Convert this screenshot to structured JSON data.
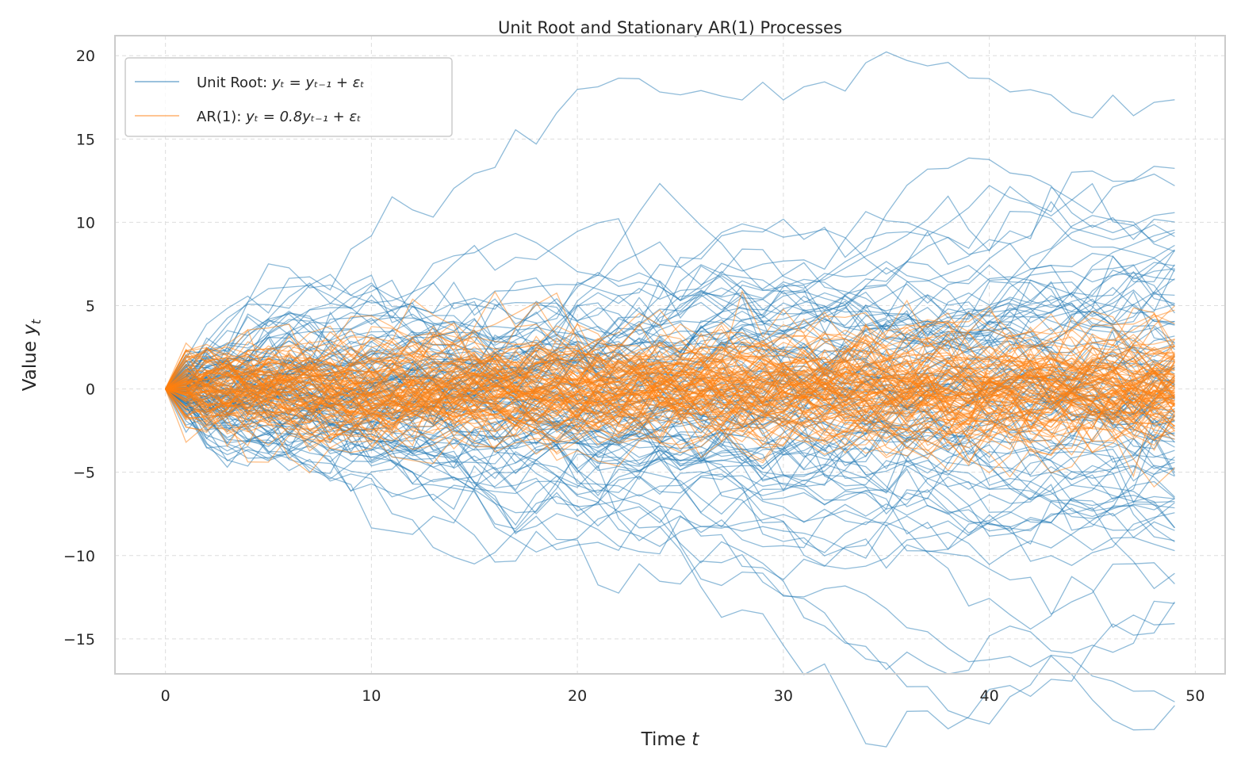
{
  "chart_data": {
    "type": "line",
    "title": "Unit Root and Stationary AR(1) Processes",
    "xlabel": "Time t",
    "xlabel_parts": {
      "text": "Time ",
      "var": "t"
    },
    "ylabel": "Value y_t",
    "ylabel_parts": {
      "text": "Value ",
      "var": "y",
      "sub": "t"
    },
    "xlim": [
      -2.45,
      51.45
    ],
    "ylim": [
      -17.1,
      21.2
    ],
    "xticks": [
      0,
      10,
      20,
      30,
      40,
      50
    ],
    "xtick_labels": [
      "0",
      "10",
      "20",
      "30",
      "40",
      "50"
    ],
    "yticks": [
      -15,
      -10,
      -5,
      0,
      5,
      10,
      15,
      20
    ],
    "ytick_labels": [
      "−15",
      "−10",
      "−5",
      "0",
      "5",
      "10",
      "15",
      "20"
    ],
    "grid": true,
    "legend_position": "top-left",
    "n_steps": 50,
    "series": [
      {
        "name": "Unit Root: y_t = y_{t-1} + ε_t",
        "label_text": "Unit Root: ",
        "formula": "yₜ = yₜ₋₁ + εₜ",
        "phi": 1.0,
        "n_paths": 100,
        "seed": 7,
        "color": "#1f77b4",
        "alpha": 0.5
      },
      {
        "name": "AR(1): y_t = 0.8y_{t-1} + ε_t",
        "label_text": "AR(1): ",
        "formula": "yₜ = 0.8yₜ₋₁ + εₜ",
        "phi": 0.8,
        "n_paths": 100,
        "seed": 11,
        "color": "#ff7f0e",
        "alpha": 0.5
      }
    ]
  }
}
